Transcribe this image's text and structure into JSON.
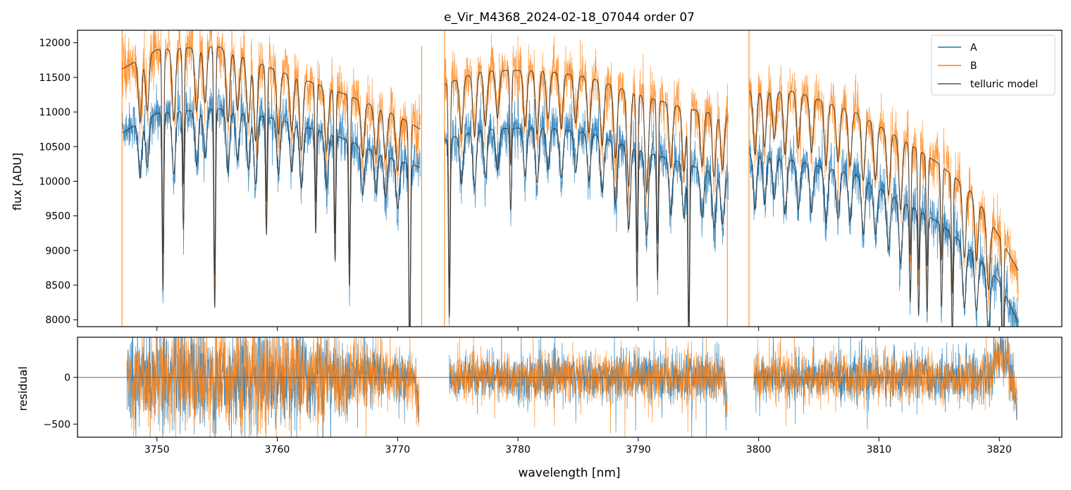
{
  "title": "e_Vir_M4368_2024-02-18_07044  order 07",
  "colors": {
    "A": "#1f77b4",
    "B": "#ff7f0e",
    "model": "#333333",
    "frame": "#000000"
  },
  "chart_data": [
    {
      "type": "line",
      "panel": "top",
      "xlabel": "",
      "ylabel": "flux [ADU]",
      "xlim": [
        3743.4,
        3825.2
      ],
      "ylim": [
        7900,
        12180
      ],
      "xticks": [
        3750,
        3760,
        3770,
        3780,
        3790,
        3800,
        3810,
        3820
      ],
      "yticks": [
        8000,
        8500,
        9000,
        9500,
        10000,
        10500,
        11000,
        11500,
        12000
      ],
      "ytick_labels": [
        "8000",
        "8500",
        "9000",
        "9500",
        "10000",
        "10500",
        "11000",
        "11500",
        "12000"
      ],
      "legend": {
        "position": "upper right",
        "entries": [
          "A",
          "B",
          "telluric model"
        ]
      },
      "segments": [
        [
          3747.1,
          3771.9
        ],
        [
          3773.9,
          3797.5
        ],
        [
          3799.2,
          3821.6
        ]
      ],
      "series": [
        {
          "name": "A",
          "continuum": [
            [
              3747.1,
              10750
            ],
            [
              3750,
              10980
            ],
            [
              3755,
              11050
            ],
            [
              3760,
              10900
            ],
            [
              3765,
              10650
            ],
            [
              3770,
              10300
            ],
            [
              3771.9,
              10200
            ],
            [
              3773.9,
              10600
            ],
            [
              3777,
              10750
            ],
            [
              3782,
              10780
            ],
            [
              3786,
              10700
            ],
            [
              3790,
              10450
            ],
            [
              3794,
              10250
            ],
            [
              3797.5,
              10050
            ],
            [
              3799.2,
              10400
            ],
            [
              3803,
              10300
            ],
            [
              3808,
              10100
            ],
            [
              3812,
              9700
            ],
            [
              3815,
              9400
            ],
            [
              3818,
              8950
            ],
            [
              3820,
              8550
            ],
            [
              3821.6,
              7950
            ]
          ],
          "noise": 170
        },
        {
          "name": "B",
          "continuum": [
            [
              3747.1,
              11650
            ],
            [
              3750,
              11900
            ],
            [
              3755,
              11950
            ],
            [
              3760,
              11600
            ],
            [
              3765,
              11300
            ],
            [
              3770,
              10950
            ],
            [
              3771.9,
              10750
            ],
            [
              3773.9,
              11400
            ],
            [
              3777,
              11600
            ],
            [
              3782,
              11600
            ],
            [
              3786,
              11500
            ],
            [
              3790,
              11250
            ],
            [
              3794,
              11050
            ],
            [
              3797.5,
              10950
            ],
            [
              3799.2,
              11300
            ],
            [
              3803,
              11300
            ],
            [
              3808,
              11000
            ],
            [
              3812,
              10600
            ],
            [
              3815,
              10250
            ],
            [
              3818,
              9800
            ],
            [
              3820,
              9200
            ],
            [
              3821.6,
              8700
            ]
          ],
          "noise": 200
        },
        {
          "name": "telluric model",
          "continuum_A": [
            [
              3747.1,
              10700
            ],
            [
              3750,
              10980
            ],
            [
              3755,
              11050
            ],
            [
              3760,
              10900
            ],
            [
              3765,
              10650
            ],
            [
              3770,
              10300
            ],
            [
              3771.9,
              10200
            ],
            [
              3773.9,
              10600
            ],
            [
              3777,
              10750
            ],
            [
              3782,
              10780
            ],
            [
              3786,
              10700
            ],
            [
              3790,
              10450
            ],
            [
              3794,
              10250
            ],
            [
              3797.5,
              10050
            ],
            [
              3799.2,
              10400
            ],
            [
              3803,
              10300
            ],
            [
              3808,
              10100
            ],
            [
              3812,
              9700
            ],
            [
              3815,
              9400
            ],
            [
              3818,
              8950
            ],
            [
              3820,
              8550
            ],
            [
              3821.6,
              7950
            ]
          ],
          "continuum_B": [
            [
              3747.1,
              11620
            ],
            [
              3750,
              11900
            ],
            [
              3755,
              11950
            ],
            [
              3760,
              11600
            ],
            [
              3765,
              11300
            ],
            [
              3770,
              10950
            ],
            [
              3771.9,
              10750
            ],
            [
              3773.9,
              11400
            ],
            [
              3777,
              11600
            ],
            [
              3782,
              11600
            ],
            [
              3786,
              11500
            ],
            [
              3790,
              11250
            ],
            [
              3794,
              11050
            ],
            [
              3797.5,
              10950
            ],
            [
              3799.2,
              11300
            ],
            [
              3803,
              11300
            ],
            [
              3808,
              11000
            ],
            [
              3812,
              10600
            ],
            [
              3815,
              10250
            ],
            [
              3818,
              9800
            ],
            [
              3820,
              9200
            ],
            [
              3821.6,
              8700
            ]
          ]
        }
      ],
      "absorption_lines": [
        [
          3748.6,
          0.2,
          800
        ],
        [
          3749.2,
          0.2,
          700
        ],
        [
          3750.5,
          0.1,
          2600
        ],
        [
          3751.4,
          0.2,
          900
        ],
        [
          3752.2,
          0.1,
          1700
        ],
        [
          3753.3,
          0.2,
          800
        ],
        [
          3754.0,
          0.2,
          700
        ],
        [
          3754.8,
          0.1,
          2900
        ],
        [
          3755.9,
          0.2,
          900
        ],
        [
          3756.7,
          0.2,
          700
        ],
        [
          3757.6,
          0.2,
          800
        ],
        [
          3758.2,
          0.2,
          1000
        ],
        [
          3759.1,
          0.1,
          1700
        ],
        [
          3760.1,
          0.2,
          800
        ],
        [
          3761.2,
          0.2,
          700
        ],
        [
          3762.0,
          0.2,
          900
        ],
        [
          3763.2,
          0.1,
          1500
        ],
        [
          3764.1,
          0.2,
          800
        ],
        [
          3764.8,
          0.1,
          1800
        ],
        [
          3766.0,
          0.1,
          2100
        ],
        [
          3767.1,
          0.2,
          700
        ],
        [
          3768.2,
          0.2,
          600
        ],
        [
          3769.0,
          0.2,
          600
        ],
        [
          3770.0,
          0.2,
          700
        ],
        [
          3771.0,
          0.1,
          2900
        ],
        [
          3774.3,
          0.1,
          2600
        ],
        [
          3775.3,
          0.2,
          700
        ],
        [
          3776.4,
          0.2,
          800
        ],
        [
          3777.3,
          0.2,
          700
        ],
        [
          3778.3,
          0.2,
          600
        ],
        [
          3779.4,
          0.1,
          1200
        ],
        [
          3780.6,
          0.2,
          700
        ],
        [
          3781.6,
          0.2,
          800
        ],
        [
          3782.5,
          0.2,
          600
        ],
        [
          3783.6,
          0.2,
          700
        ],
        [
          3784.8,
          0.2,
          600
        ],
        [
          3785.9,
          0.2,
          700
        ],
        [
          3787.0,
          0.2,
          800
        ],
        [
          3788.1,
          0.2,
          900
        ],
        [
          3789.2,
          0.2,
          1200
        ],
        [
          3789.9,
          0.1,
          2000
        ],
        [
          3790.7,
          0.2,
          1200
        ],
        [
          3791.6,
          0.1,
          1800
        ],
        [
          3792.7,
          0.2,
          800
        ],
        [
          3793.8,
          0.2,
          800
        ],
        [
          3794.2,
          0.1,
          2700
        ],
        [
          3795.3,
          0.2,
          700
        ],
        [
          3796.3,
          0.2,
          800
        ],
        [
          3797.0,
          0.2,
          700
        ],
        [
          3799.7,
          0.2,
          800
        ],
        [
          3800.5,
          0.2,
          700
        ],
        [
          3801.3,
          0.2,
          600
        ],
        [
          3802.2,
          0.2,
          800
        ],
        [
          3803.3,
          0.2,
          700
        ],
        [
          3804.4,
          0.2,
          700
        ],
        [
          3805.6,
          0.2,
          800
        ],
        [
          3806.6,
          0.2,
          700
        ],
        [
          3807.6,
          0.2,
          700
        ],
        [
          3808.7,
          0.2,
          800
        ],
        [
          3809.7,
          0.2,
          700
        ],
        [
          3810.8,
          0.2,
          800
        ],
        [
          3811.8,
          0.2,
          900
        ],
        [
          3812.6,
          0.1,
          1400
        ],
        [
          3813.3,
          0.1,
          1500
        ],
        [
          3814.0,
          0.1,
          1400
        ],
        [
          3815.2,
          0.1,
          1200
        ],
        [
          3816.1,
          0.1,
          1500
        ],
        [
          3817.1,
          0.2,
          900
        ],
        [
          3818.1,
          0.2,
          800
        ],
        [
          3819.1,
          0.2,
          900
        ],
        [
          3820.3,
          0.1,
          1500
        ]
      ],
      "spikes": [
        [
          3747.1,
          7900,
          12180
        ],
        [
          3772.0,
          7900,
          11950
        ],
        [
          3773.9,
          7900,
          12180
        ],
        [
          3797.4,
          7900,
          11050
        ],
        [
          3799.2,
          7900,
          12180
        ]
      ]
    },
    {
      "type": "line",
      "panel": "bottom",
      "xlabel": "wavelength [nm]",
      "ylabel": "residual",
      "xlim": [
        3743.4,
        3825.2
      ],
      "ylim": [
        -640,
        430
      ],
      "xticks": [
        3750,
        3760,
        3770,
        3780,
        3790,
        3800,
        3810,
        3820
      ],
      "xtick_labels": [
        "3750",
        "3760",
        "3770",
        "3780",
        "3790",
        "3800",
        "3810",
        "3820"
      ],
      "yticks": [
        -500,
        0
      ],
      "ytick_labels": [
        "−500",
        "0"
      ],
      "hline": 0,
      "series": [
        {
          "name": "A",
          "noise_sigma": [
            [
              3747.5,
              260
            ],
            [
              3760,
              280
            ],
            [
              3771,
              120
            ],
            [
              3774,
              110
            ],
            [
              3797,
              150
            ],
            [
              3799,
              120
            ],
            [
              3821,
              140
            ]
          ]
        },
        {
          "name": "B",
          "noise_sigma": [
            [
              3747.5,
              250
            ],
            [
              3760,
              300
            ],
            [
              3771,
              130
            ],
            [
              3774,
              110
            ],
            [
              3797,
              150
            ],
            [
              3799,
              120
            ],
            [
              3821,
              130
            ]
          ]
        }
      ]
    }
  ]
}
